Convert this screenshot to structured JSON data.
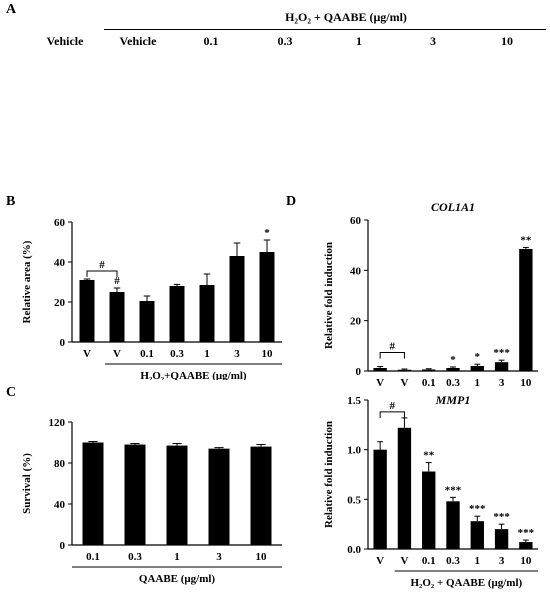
{
  "panel_a": {
    "label": "A",
    "treatment_header": "H₂O₂  + QAABE (μg/ml)",
    "columns": [
      "Vehicle",
      "Vehicle",
      "0.1",
      "0.3",
      "1",
      "3",
      "10"
    ],
    "top_color": "#3a35b8",
    "bottom_color": "#8a8a8a",
    "outline_color": "#d8c830",
    "gap_size": [
      0.55,
      0.5,
      0.45,
      0.5,
      0.4,
      0.38,
      0.32
    ]
  },
  "panel_b": {
    "label": "B"
  },
  "panel_c": {
    "label": "C"
  },
  "panel_d": {
    "label": "D"
  },
  "chart_data": [
    {
      "id": "B",
      "type": "bar",
      "categories": [
        "V",
        "V",
        "0.1",
        "0.3",
        "1",
        "3",
        "10"
      ],
      "values": [
        31,
        25,
        20.5,
        28,
        28.5,
        43,
        45
      ],
      "errors": [
        0.5,
        2,
        2.5,
        0.8,
        5.5,
        6.5,
        6
      ],
      "annotations": [
        "",
        "#",
        "",
        "",
        "",
        "",
        "*"
      ],
      "ylabel": "Relative area (%)",
      "xlabel": "H₂O₂+QAABE (μg/ml)",
      "yticks": [
        "0",
        "20",
        "40",
        "60"
      ],
      "ylim": [
        0,
        60
      ],
      "bracket": "#"
    },
    {
      "id": "C",
      "type": "bar",
      "categories": [
        "0.1",
        "0.3",
        "1",
        "3",
        "10"
      ],
      "values": [
        100,
        98,
        97,
        94,
        96
      ],
      "errors": [
        1,
        1,
        2,
        1,
        2
      ],
      "ylabel": "Survival (%)",
      "xlabel": "QAABE (μg/ml)",
      "yticks": [
        "0",
        "40",
        "80",
        "120"
      ],
      "ylim": [
        0,
        120
      ]
    },
    {
      "id": "D-top",
      "type": "bar",
      "title": "COL1A1",
      "categories": [
        "V",
        "V",
        "0.1",
        "0.3",
        "1",
        "3",
        "10"
      ],
      "values": [
        1.2,
        0.5,
        0.6,
        1.2,
        2,
        3.5,
        48.5
      ],
      "errors": [
        0.6,
        0.3,
        0.3,
        0.4,
        0.7,
        0.8,
        0.6
      ],
      "annotations": [
        "",
        "",
        "",
        "*",
        "*",
        "***",
        "**"
      ],
      "ylabel": "Relative fold induction",
      "yticks": [
        "0",
        "20",
        "40",
        "60"
      ],
      "ylim": [
        0,
        60
      ],
      "bracket": "#"
    },
    {
      "id": "D-bottom",
      "type": "bar",
      "title": "MMP1",
      "categories": [
        "V",
        "V",
        "0.1",
        "0.3",
        "1",
        "3",
        "10"
      ],
      "values": [
        1.0,
        1.22,
        0.78,
        0.48,
        0.28,
        0.2,
        0.07
      ],
      "errors": [
        0.08,
        0.1,
        0.09,
        0.04,
        0.05,
        0.05,
        0.02
      ],
      "annotations": [
        "",
        "",
        "**",
        "***",
        "***",
        "***",
        "***"
      ],
      "ylabel": "Relative fold induction",
      "xlabel": "H₂O₂ + QAABE (μg/ml)",
      "yticks": [
        "0.0",
        "0.5",
        "1.0",
        "1.5"
      ],
      "ylim": [
        0,
        1.5
      ],
      "bracket": "#"
    }
  ]
}
